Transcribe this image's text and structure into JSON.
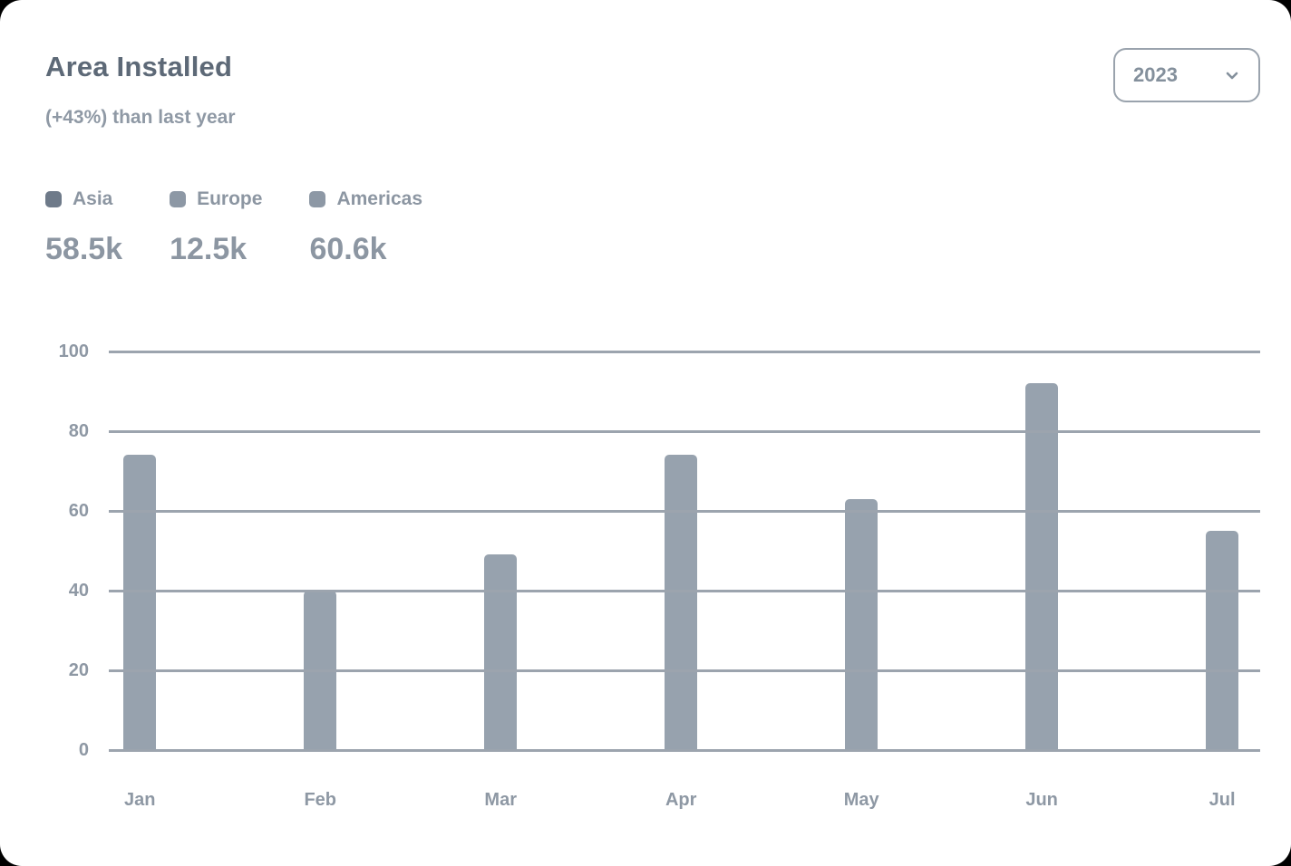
{
  "header": {
    "title": "Area Installed",
    "subtitle": "(+43%) than last year"
  },
  "year_selector": {
    "value": "2023"
  },
  "legend": {
    "items": [
      {
        "label": "Asia",
        "value": "58.5k",
        "marker_color": "#6e7a89"
      },
      {
        "label": "Europe",
        "value": "12.5k",
        "marker_color": "#8d98a5"
      },
      {
        "label": "Americas",
        "value": "60.6k",
        "marker_color": "#8d98a5"
      }
    ]
  },
  "chart_data": {
    "type": "bar",
    "title": "Area Installed",
    "categories": [
      "Jan",
      "Feb",
      "Mar",
      "Apr",
      "May",
      "Jun",
      "Jul"
    ],
    "values": [
      74,
      40,
      49,
      74,
      63,
      92,
      55
    ],
    "xlabel": "",
    "ylabel": "",
    "ylim": [
      0,
      100
    ],
    "yticks": [
      0,
      20,
      40,
      60,
      80,
      100
    ],
    "grid": true,
    "legend_position": "top-left",
    "bar_color": "#97a2ae",
    "gridline_color": "#9ca4ae"
  },
  "colors": {
    "title": "#5d6977",
    "subtitle": "#8f99a5",
    "text_muted": "#8e98a4",
    "bar": "#97a2ae",
    "gridline": "#9ca4ae",
    "border": "#9aa3ad"
  }
}
